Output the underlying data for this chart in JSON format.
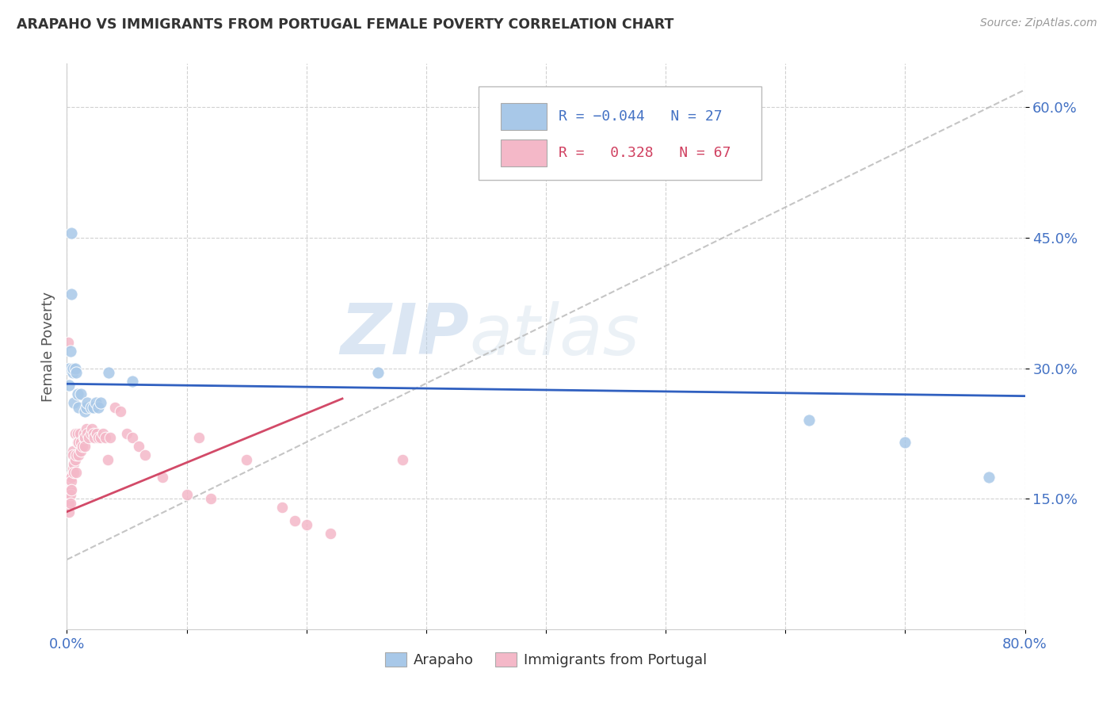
{
  "title": "ARAPAHO VS IMMIGRANTS FROM PORTUGAL FEMALE POVERTY CORRELATION CHART",
  "source": "Source: ZipAtlas.com",
  "ylabel": "Female Poverty",
  "xlim": [
    0.0,
    0.8
  ],
  "ylim": [
    0.0,
    0.65
  ],
  "xticks": [
    0.0,
    0.1,
    0.2,
    0.3,
    0.4,
    0.5,
    0.6,
    0.7,
    0.8
  ],
  "xticklabels": [
    "0.0%",
    "",
    "",
    "",
    "",
    "",
    "",
    "",
    "80.0%"
  ],
  "ytick_positions": [
    0.15,
    0.3,
    0.45,
    0.6
  ],
  "ytick_labels": [
    "15.0%",
    "30.0%",
    "45.0%",
    "60.0%"
  ],
  "blue_color": "#a8c8e8",
  "pink_color": "#f4b8c8",
  "line_blue": "#3060c0",
  "line_dashed_color": "#bbbbbb",
  "line_pink_color": "#d04060",
  "watermark_zip": "ZIP",
  "watermark_atlas": "atlas",
  "arapaho_x": [
    0.002,
    0.002,
    0.003,
    0.004,
    0.005,
    0.005,
    0.006,
    0.007,
    0.008,
    0.009,
    0.01,
    0.012,
    0.015,
    0.016,
    0.017,
    0.02,
    0.022,
    0.024,
    0.026,
    0.028,
    0.035,
    0.055,
    0.26,
    0.62,
    0.7,
    0.77,
    0.004
  ],
  "arapaho_y": [
    0.28,
    0.3,
    0.32,
    0.455,
    0.295,
    0.3,
    0.26,
    0.3,
    0.295,
    0.27,
    0.255,
    0.27,
    0.25,
    0.255,
    0.26,
    0.255,
    0.255,
    0.26,
    0.255,
    0.26,
    0.295,
    0.285,
    0.295,
    0.24,
    0.215,
    0.175,
    0.385
  ],
  "portugal_x": [
    0.001,
    0.001,
    0.001,
    0.002,
    0.002,
    0.002,
    0.002,
    0.002,
    0.003,
    0.003,
    0.003,
    0.003,
    0.004,
    0.004,
    0.004,
    0.005,
    0.005,
    0.005,
    0.006,
    0.006,
    0.007,
    0.007,
    0.008,
    0.008,
    0.009,
    0.009,
    0.01,
    0.01,
    0.011,
    0.012,
    0.012,
    0.013,
    0.014,
    0.014,
    0.015,
    0.015,
    0.016,
    0.017,
    0.018,
    0.02,
    0.021,
    0.022,
    0.023,
    0.025,
    0.026,
    0.028,
    0.03,
    0.032,
    0.034,
    0.036,
    0.04,
    0.045,
    0.05,
    0.055,
    0.06,
    0.065,
    0.08,
    0.1,
    0.12,
    0.18,
    0.19,
    0.2,
    0.22,
    0.001,
    0.11,
    0.15,
    0.28
  ],
  "portugal_y": [
    0.175,
    0.165,
    0.15,
    0.17,
    0.16,
    0.15,
    0.145,
    0.135,
    0.175,
    0.16,
    0.155,
    0.145,
    0.175,
    0.17,
    0.16,
    0.185,
    0.205,
    0.2,
    0.19,
    0.18,
    0.195,
    0.225,
    0.18,
    0.2,
    0.225,
    0.215,
    0.215,
    0.2,
    0.225,
    0.215,
    0.205,
    0.21,
    0.22,
    0.225,
    0.22,
    0.21,
    0.23,
    0.225,
    0.22,
    0.225,
    0.23,
    0.225,
    0.22,
    0.225,
    0.22,
    0.22,
    0.225,
    0.22,
    0.195,
    0.22,
    0.255,
    0.25,
    0.225,
    0.22,
    0.21,
    0.2,
    0.175,
    0.155,
    0.15,
    0.14,
    0.125,
    0.12,
    0.11,
    0.33,
    0.22,
    0.195,
    0.195
  ],
  "blue_line_x": [
    0.0,
    0.8
  ],
  "blue_line_y": [
    0.282,
    0.268
  ],
  "dashed_line_x": [
    0.0,
    0.8
  ],
  "dashed_line_y": [
    0.08,
    0.62
  ],
  "pink_line_x": [
    0.0,
    0.23
  ],
  "pink_line_y": [
    0.135,
    0.265
  ]
}
